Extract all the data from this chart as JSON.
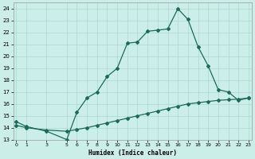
{
  "xlabel": "Humidex (Indice chaleur)",
  "bg_color": "#cceee8",
  "grid_color": "#aad8d0",
  "line_color": "#1a6b5a",
  "line1_x": [
    0,
    1,
    3,
    5,
    6,
    7,
    8,
    9,
    10,
    11,
    12,
    13,
    14,
    15,
    16,
    17,
    18,
    19,
    20,
    21,
    22,
    23
  ],
  "line1_y": [
    14.5,
    14.1,
    13.7,
    13.0,
    15.3,
    16.5,
    17.0,
    18.3,
    19.0,
    21.1,
    21.2,
    22.1,
    22.2,
    22.3,
    24.0,
    23.1,
    20.8,
    19.2,
    17.2,
    17.0,
    16.3,
    16.5
  ],
  "line2_x": [
    0,
    1,
    3,
    5,
    6,
    7,
    8,
    9,
    10,
    11,
    12,
    13,
    14,
    15,
    16,
    17,
    18,
    19,
    20,
    21,
    22,
    23
  ],
  "line2_y": [
    14.2,
    14.0,
    13.8,
    13.7,
    13.85,
    14.0,
    14.2,
    14.4,
    14.6,
    14.8,
    15.0,
    15.2,
    15.4,
    15.6,
    15.8,
    16.0,
    16.1,
    16.2,
    16.3,
    16.35,
    16.4,
    16.5
  ],
  "ylim": [
    13,
    24.5
  ],
  "xlim": [
    -0.3,
    23.3
  ],
  "yticks": [
    13,
    14,
    15,
    16,
    17,
    18,
    19,
    20,
    21,
    22,
    23,
    24
  ],
  "xtick_positions": [
    0,
    1,
    3,
    5,
    6,
    7,
    8,
    9,
    10,
    11,
    12,
    13,
    14,
    15,
    16,
    17,
    18,
    19,
    20,
    21,
    22,
    23
  ],
  "xtick_labels": [
    "0",
    "1",
    "3",
    "5",
    "6",
    "7",
    "8",
    "9",
    "10",
    "11",
    "12",
    "13",
    "14",
    "15",
    "16",
    "17",
    "18",
    "19",
    "20",
    "21",
    "22",
    "23"
  ],
  "marker": "D",
  "markersize": 2,
  "linewidth": 0.9
}
